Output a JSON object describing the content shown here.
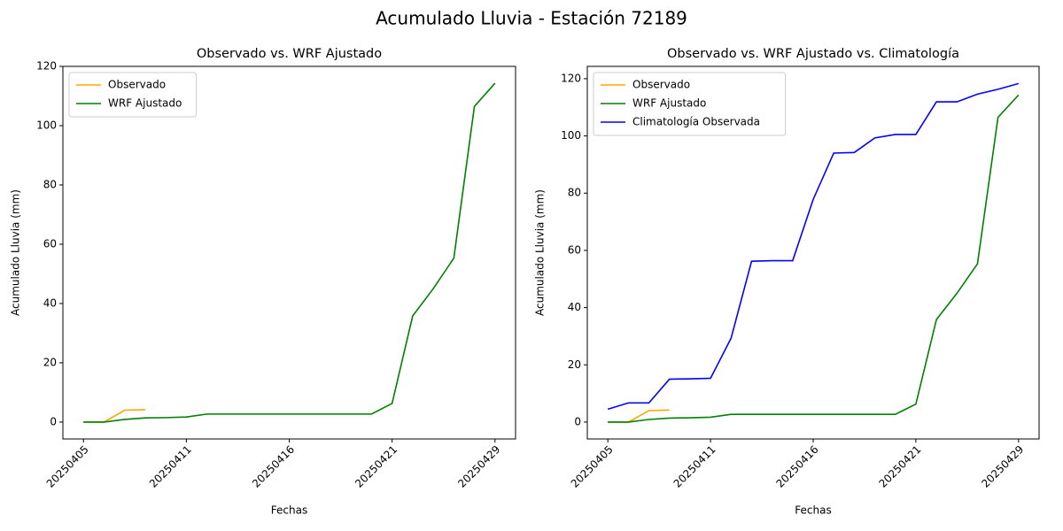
{
  "title": "Acumulado Lluvia - Estación 72189",
  "chart_data": [
    {
      "type": "line",
      "title": "Observado vs. WRF Ajustado",
      "x_label": "Fechas",
      "y_label": "Acumulado Lluvia (mm)",
      "categories": [
        "20250405",
        null,
        null,
        null,
        null,
        "20250411",
        null,
        null,
        null,
        null,
        "20250416",
        null,
        null,
        null,
        null,
        "20250421",
        null,
        null,
        null,
        null,
        "20250429"
      ],
      "series": [
        {
          "name": "Observado",
          "color": "#ffa500",
          "values": [
            0,
            0,
            4.0,
            4.2,
            null,
            null,
            null,
            null,
            null,
            null,
            null,
            null,
            null,
            null,
            null,
            null,
            null,
            null,
            null,
            null,
            null
          ]
        },
        {
          "name": "WRF Ajustado",
          "color": "#008000",
          "values": [
            0,
            0,
            0.9,
            1.4,
            1.5,
            1.7,
            2.7,
            2.7,
            2.7,
            2.7,
            2.7,
            2.7,
            2.7,
            2.7,
            2.7,
            6.3,
            35.8,
            45.0,
            55.3,
            106.5,
            114.3
          ]
        }
      ],
      "ylim": [
        -5.7,
        120
      ],
      "yticks": [
        0,
        20,
        40,
        60,
        80,
        100,
        120
      ],
      "legend": "upper left"
    },
    {
      "type": "line",
      "title": "Observado vs. WRF Ajustado vs. Climatología",
      "x_label": "Fechas",
      "y_label": "Acumulado Lluvia (mm)",
      "categories": [
        "20250405",
        null,
        null,
        null,
        null,
        "20250411",
        null,
        null,
        null,
        null,
        "20250416",
        null,
        null,
        null,
        null,
        "20250421",
        null,
        null,
        null,
        null,
        "20250429"
      ],
      "series": [
        {
          "name": "Observado",
          "color": "#ffa500",
          "values": [
            0,
            0,
            4.0,
            4.2,
            null,
            null,
            null,
            null,
            null,
            null,
            null,
            null,
            null,
            null,
            null,
            null,
            null,
            null,
            null,
            null,
            null
          ]
        },
        {
          "name": "WRF Ajustado",
          "color": "#008000",
          "values": [
            0,
            0,
            0.9,
            1.4,
            1.5,
            1.7,
            2.7,
            2.7,
            2.7,
            2.7,
            2.7,
            2.7,
            2.7,
            2.7,
            2.7,
            6.3,
            35.8,
            45.0,
            55.3,
            106.5,
            114.3
          ]
        },
        {
          "name": "Climatología Observada",
          "color": "#0000ff",
          "values": [
            4.5,
            6.7,
            6.7,
            15.0,
            15.1,
            15.3,
            29.3,
            56.2,
            56.4,
            56.4,
            77.8,
            94.0,
            94.2,
            99.3,
            100.5,
            100.5,
            111.9,
            111.9,
            114.6,
            116.3,
            118.3
          ]
        }
      ],
      "ylim": [
        -5.9,
        124.3
      ],
      "yticks": [
        0,
        20,
        40,
        60,
        80,
        100,
        120
      ],
      "legend": "upper left"
    }
  ]
}
